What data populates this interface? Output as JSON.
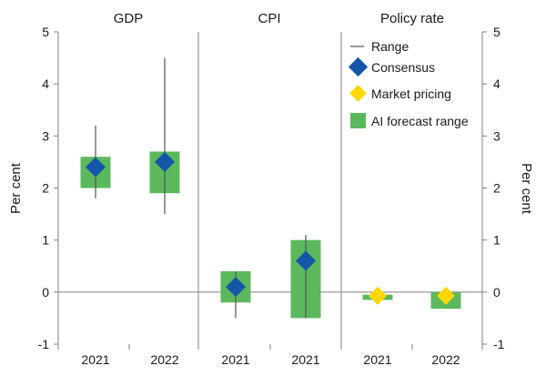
{
  "chart_data": {
    "type": "range-dot",
    "panels": [
      {
        "title": "GDP",
        "categories": [
          "2021",
          "2022"
        ]
      },
      {
        "title": "CPI",
        "categories": [
          "2021",
          "2021"
        ]
      },
      {
        "title": "Policy rate",
        "categories": [
          "2021",
          "2022"
        ]
      }
    ],
    "ylabel_left": "Per cent",
    "ylabel_right": "Per cent",
    "ylim": [
      -1,
      5
    ],
    "yticks": [
      "-1",
      "0",
      "1",
      "2",
      "3",
      "4",
      "5"
    ],
    "legend": {
      "range": "Range",
      "consensus": "Consensus",
      "market": "Market pricing",
      "ai": "AI forecast range"
    },
    "series": {
      "range": [
        [
          1.8,
          3.2
        ],
        [
          1.5,
          4.5
        ],
        [
          -0.5,
          0.4
        ],
        [
          -0.5,
          1.1
        ],
        null,
        null
      ],
      "ai_range": [
        [
          2.0,
          2.6
        ],
        [
          1.9,
          2.7
        ],
        [
          -0.2,
          0.4
        ],
        [
          -0.5,
          1.0
        ],
        [
          -0.15,
          -0.05
        ],
        [
          -0.32,
          0.0
        ]
      ],
      "consensus": [
        2.4,
        2.5,
        0.1,
        0.6,
        null,
        null
      ],
      "market": [
        null,
        null,
        null,
        null,
        -0.07,
        -0.07
      ]
    },
    "colors": {
      "ai": "#5cb85c",
      "consensus": "#1457a8",
      "market": "#ffd700",
      "range": "#555555",
      "axis": "#808080"
    }
  }
}
